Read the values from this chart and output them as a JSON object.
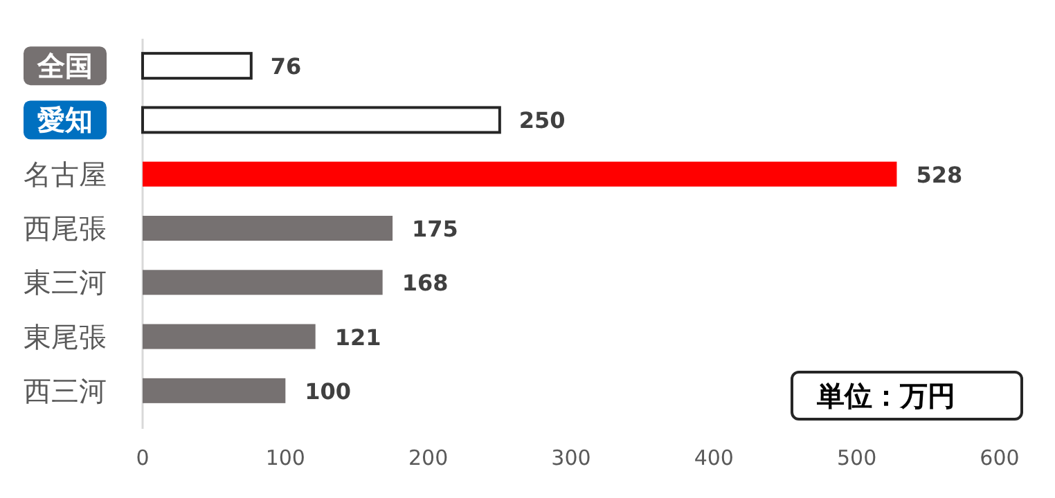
{
  "chart_data": {
    "type": "bar",
    "orientation": "horizontal",
    "categories": [
      "全国",
      "愛知",
      "名古屋",
      "西尾張",
      "東三河",
      "東尾張",
      "西三河"
    ],
    "values": [
      76,
      250,
      528,
      175,
      168,
      121,
      100
    ],
    "colors": [
      "#ffffff",
      "#ffffff",
      "#ff0000",
      "#767171",
      "#767171",
      "#767171",
      "#767171"
    ],
    "xlim": [
      0,
      600
    ],
    "xticks": [
      0,
      100,
      200,
      300,
      400,
      500,
      600
    ],
    "data_labels": true,
    "annotations": [
      "単位：万円"
    ]
  }
}
